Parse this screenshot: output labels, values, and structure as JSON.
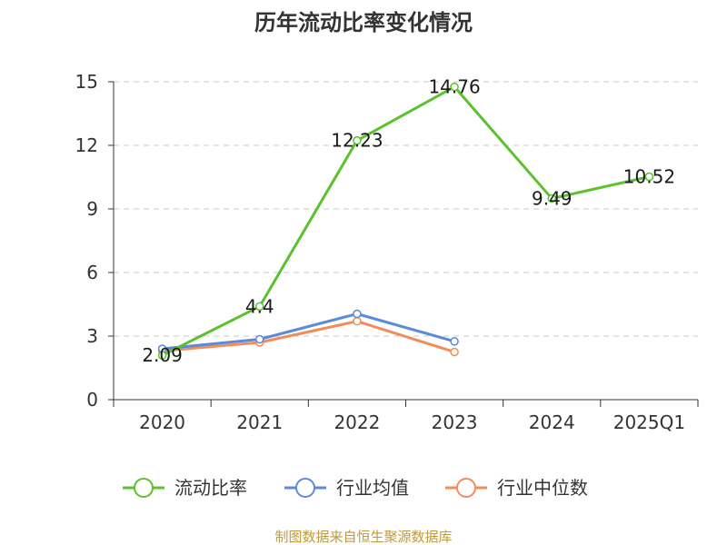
{
  "chart_data": {
    "type": "line",
    "title": "历年流动比率变化情况",
    "categories": [
      "2020",
      "2021",
      "2022",
      "2023",
      "2024",
      "2025Q1"
    ],
    "ylim": [
      0,
      15
    ],
    "yticks": [
      0,
      3,
      6,
      9,
      12,
      15
    ],
    "grid": true,
    "legend_position": "bottom",
    "series": [
      {
        "name": "流动比率",
        "color": "#5cc12e",
        "values": [
          2.09,
          4.4,
          12.23,
          14.76,
          9.49,
          10.52
        ],
        "labels": [
          "2.09",
          "4.4",
          "12.23",
          "14.76",
          "9.49",
          "10.52"
        ]
      },
      {
        "name": "行业均值",
        "color": "#5b8ad9",
        "values": [
          2.4,
          2.85,
          4.05,
          2.75,
          null,
          null
        ]
      },
      {
        "name": "行业中位数",
        "color": "#f28c5a",
        "values": [
          2.3,
          2.7,
          3.7,
          2.25,
          null,
          null
        ]
      }
    ]
  },
  "source": "制图数据来自恒生聚源数据库"
}
